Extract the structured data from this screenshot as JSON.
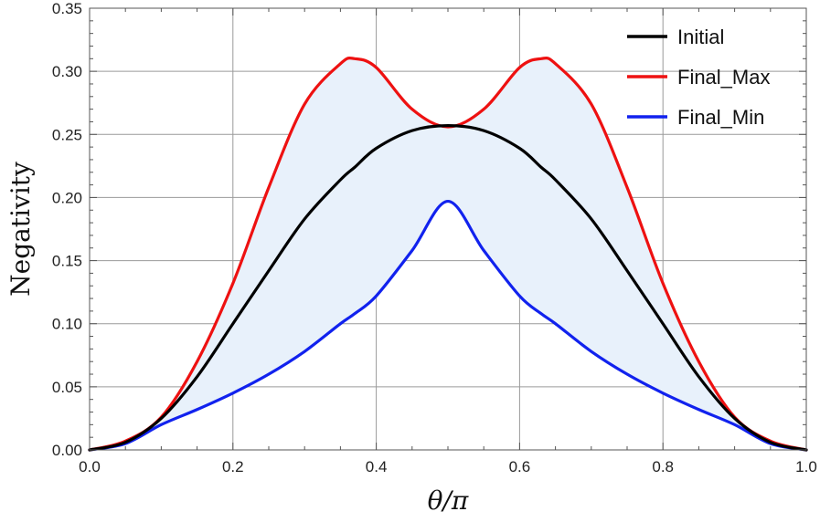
{
  "chart_data": {
    "type": "line",
    "title": "",
    "xlabel": "θ/π",
    "ylabel": "Negativity",
    "xlim": [
      0.0,
      1.0
    ],
    "ylim": [
      0.0,
      0.35
    ],
    "x_ticks": [
      "0.0",
      "0.2",
      "0.4",
      "0.6",
      "0.8",
      "1.0"
    ],
    "y_ticks": [
      "0.00",
      "0.05",
      "0.10",
      "0.15",
      "0.20",
      "0.25",
      "0.30",
      "0.35"
    ],
    "grid": true,
    "legend_position": "top-right",
    "shaded_region": {
      "between": [
        "Final_Min",
        "Final_Max"
      ],
      "color": "#e8f1fb"
    },
    "x": [
      0.0,
      0.05,
      0.1,
      0.15,
      0.2,
      0.25,
      0.3,
      0.35,
      0.37,
      0.4,
      0.45,
      0.5,
      0.55,
      0.6,
      0.63,
      0.65,
      0.7,
      0.75,
      0.8,
      0.85,
      0.9,
      0.95,
      1.0
    ],
    "series": [
      {
        "name": "Initial",
        "color": "#000000",
        "values": [
          0.0,
          0.006,
          0.025,
          0.058,
          0.1,
          0.142,
          0.183,
          0.214,
          0.224,
          0.239,
          0.253,
          0.257,
          0.253,
          0.239,
          0.224,
          0.214,
          0.183,
          0.142,
          0.1,
          0.058,
          0.025,
          0.006,
          0.0
        ]
      },
      {
        "name": "Final_Max",
        "color": "#ee1111",
        "values": [
          0.0,
          0.007,
          0.026,
          0.07,
          0.132,
          0.208,
          0.274,
          0.306,
          0.31,
          0.303,
          0.27,
          0.256,
          0.27,
          0.303,
          0.31,
          0.306,
          0.274,
          0.208,
          0.132,
          0.07,
          0.026,
          0.007,
          0.0
        ]
      },
      {
        "name": "Final_Min",
        "color": "#1122ee",
        "values": [
          0.0,
          0.005,
          0.02,
          0.032,
          0.045,
          0.06,
          0.078,
          0.1,
          0.108,
          0.122,
          0.158,
          0.197,
          0.158,
          0.122,
          0.108,
          0.1,
          0.078,
          0.06,
          0.045,
          0.032,
          0.02,
          0.005,
          0.0
        ]
      }
    ]
  }
}
